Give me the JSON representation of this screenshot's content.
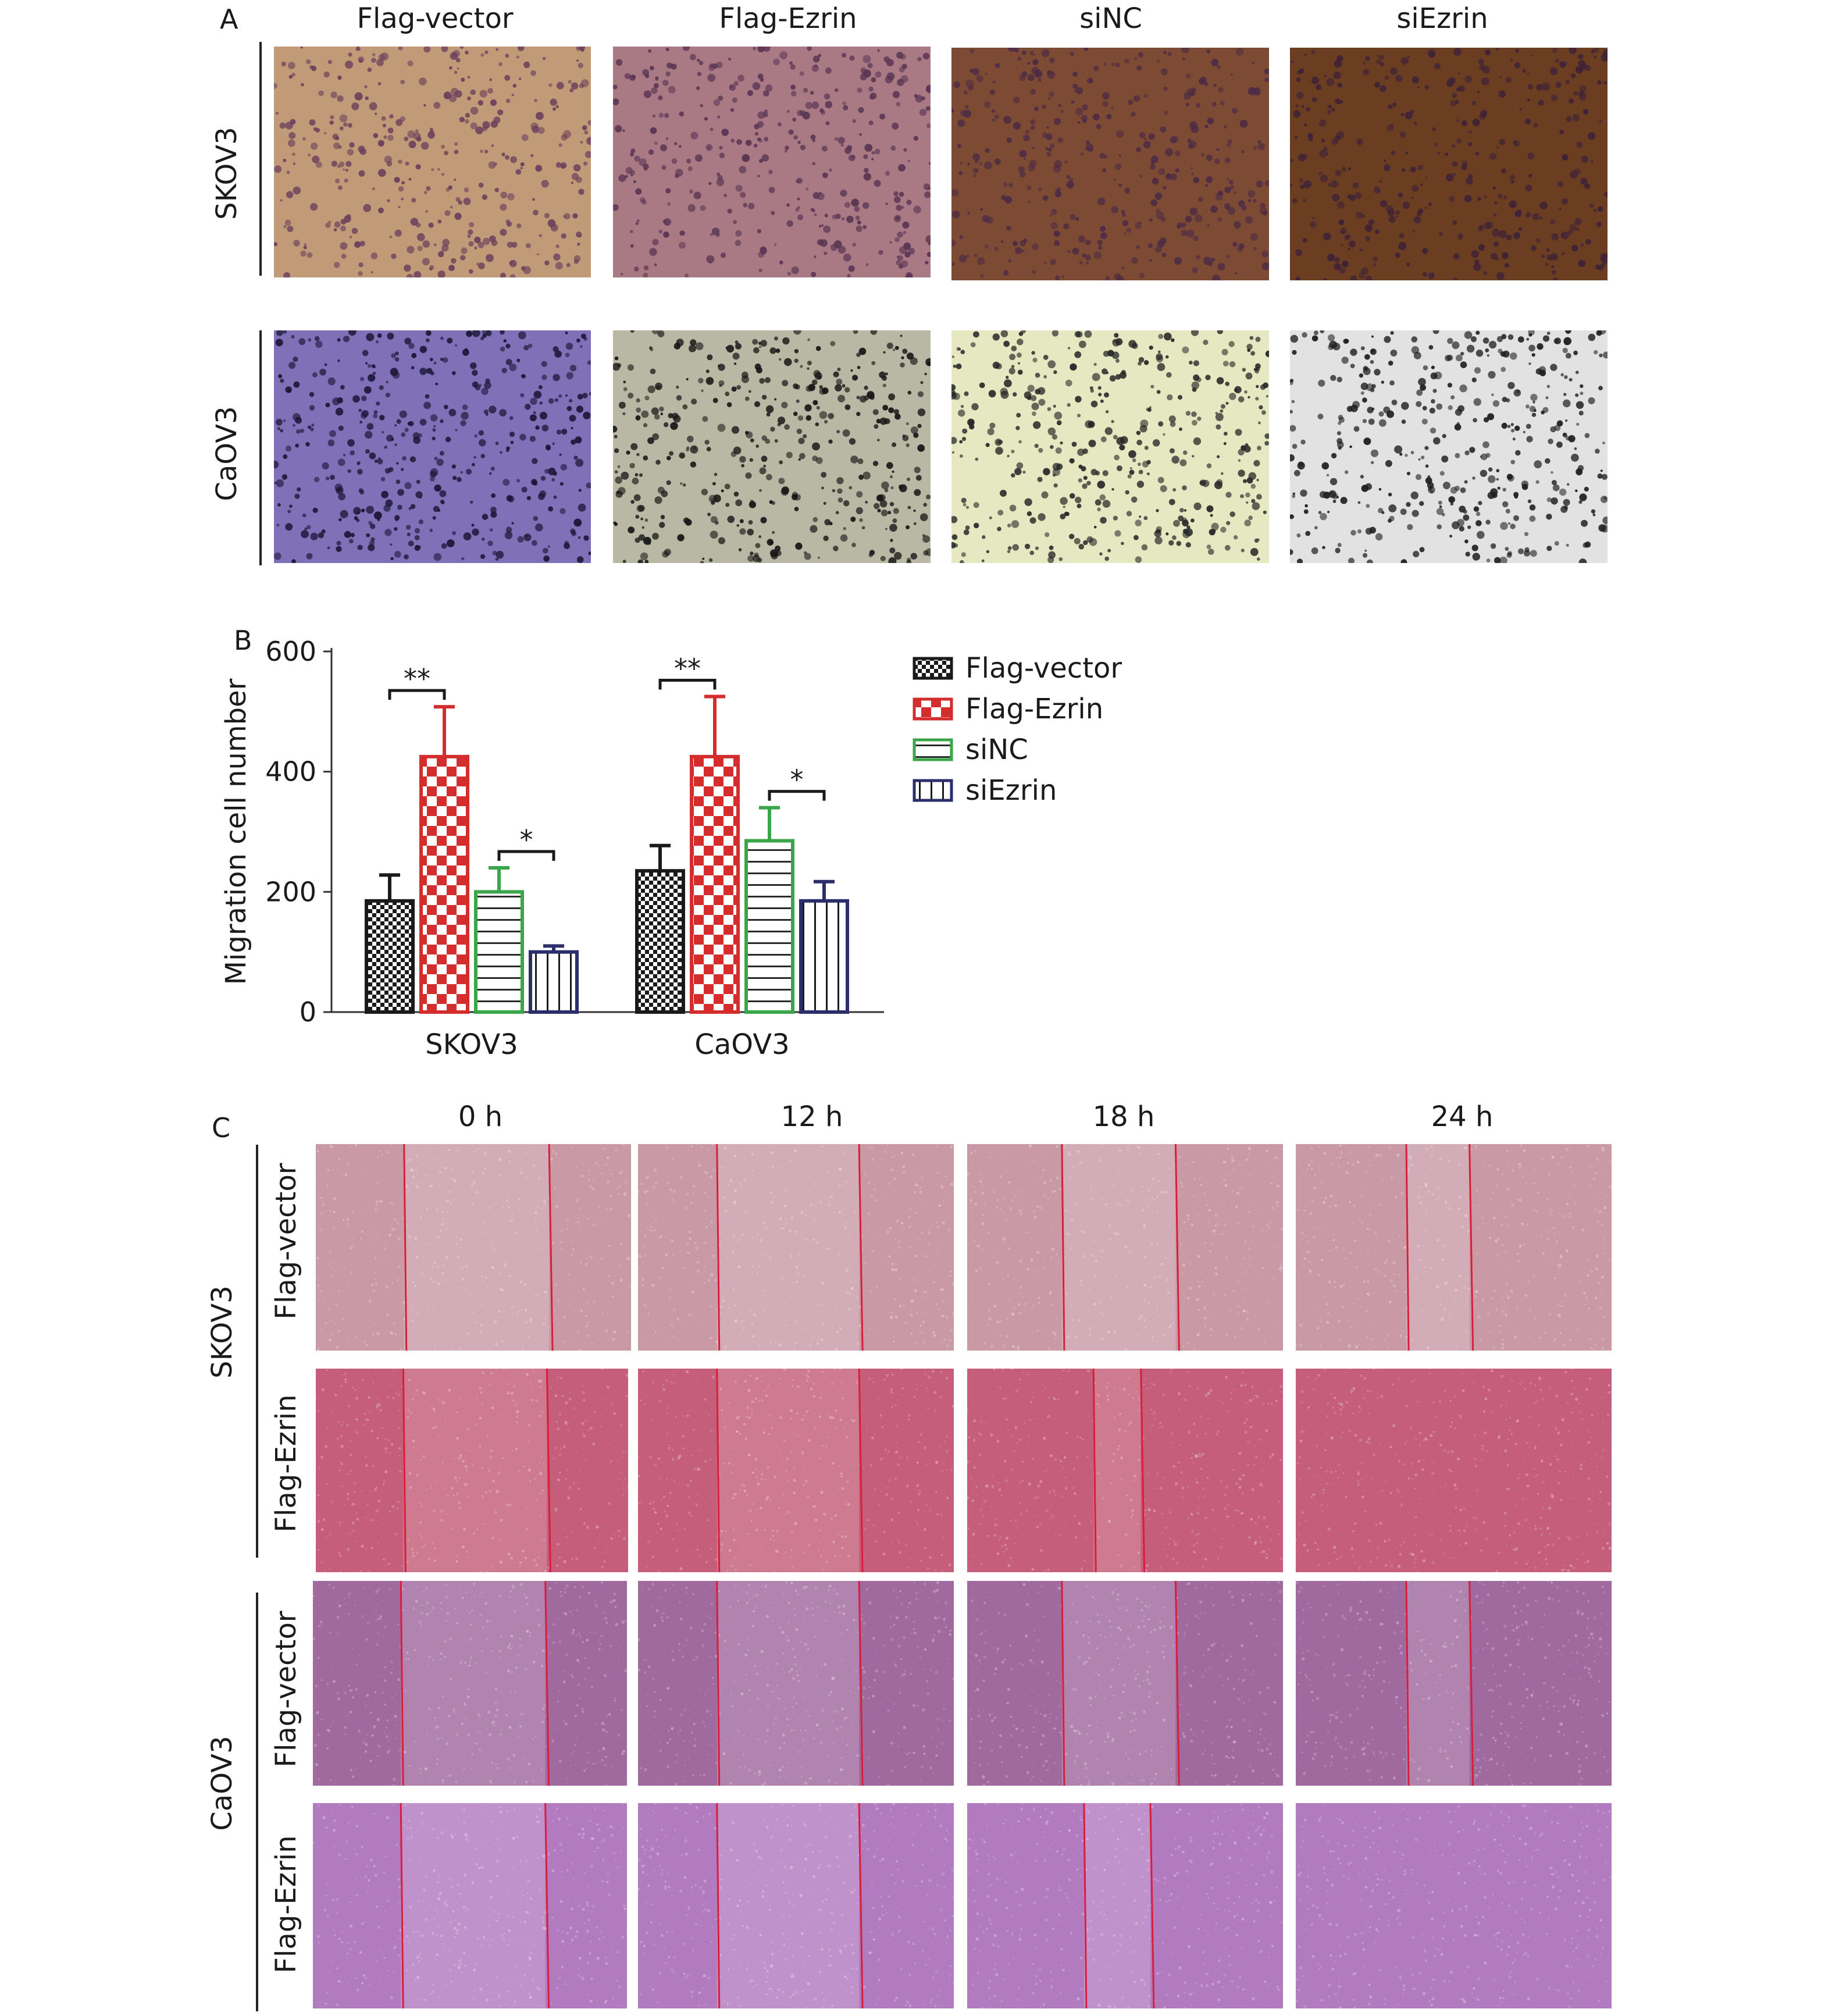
{
  "panel_labels": {
    "a": "A",
    "b": "B",
    "c": "C"
  },
  "panel_a": {
    "columns": [
      "Flag-vector",
      "Flag-Ezrin",
      "siNC",
      "siEzrin"
    ],
    "rows": [
      "SKOV3",
      "CaOV3"
    ],
    "colors": {
      "SKOV3": [
        [
          "#c19a78",
          "#6d3f5c"
        ],
        [
          "#a97a84",
          "#5a3654"
        ],
        [
          "#7d4a33",
          "#4e2c45"
        ],
        [
          "#6b3e22",
          "#3f2237"
        ]
      ],
      "CaOV3": [
        [
          "#7f70b8",
          "#1c1738"
        ],
        [
          "#b9b8a4",
          "#161616"
        ],
        [
          "#e5e8c0",
          "#262626"
        ],
        [
          "#e2e2e2",
          "#1e1e1e"
        ]
      ]
    }
  },
  "chart_data": {
    "type": "bar",
    "ylabel": "Migration cell number",
    "ylim": [
      0,
      600
    ],
    "yticks": [
      "0",
      "200",
      "400",
      "600"
    ],
    "categories": [
      "SKOV3",
      "CaOV3"
    ],
    "series": [
      {
        "name": "Flag-vector",
        "values": [
          185,
          235
        ],
        "errors": [
          43,
          42
        ],
        "color": "#1a1a1a",
        "pattern": "checker-small"
      },
      {
        "name": "Flag-Ezrin",
        "values": [
          425,
          425
        ],
        "errors": [
          83,
          100
        ],
        "color": "#d42d2d",
        "pattern": "checker-large"
      },
      {
        "name": "siNC",
        "values": [
          200,
          285
        ],
        "errors": [
          40,
          55
        ],
        "color": "#3aa64a",
        "pattern": "horizontal"
      },
      {
        "name": "siEzrin",
        "values": [
          100,
          185
        ],
        "errors": [
          10,
          32
        ],
        "color": "#2b2e6b",
        "pattern": "vertical"
      }
    ],
    "significance": [
      {
        "category": "SKOV3",
        "pair": [
          0,
          1
        ],
        "label": "**"
      },
      {
        "category": "SKOV3",
        "pair": [
          2,
          3
        ],
        "label": "*"
      },
      {
        "category": "CaOV3",
        "pair": [
          0,
          1
        ],
        "label": "**"
      },
      {
        "category": "CaOV3",
        "pair": [
          2,
          3
        ],
        "label": "*"
      }
    ],
    "legend_position": "right"
  },
  "panel_c": {
    "columns": [
      "0 h",
      "12 h",
      "18 h",
      "24 h"
    ],
    "groups": [
      "SKOV3",
      "CaOV3"
    ],
    "rows": [
      "Flag-vector",
      "Flag-Ezrin",
      "Flag-vector",
      "Flag-Ezrin"
    ],
    "colors": [
      "#c99aa6",
      "#c45e7a",
      "#a06a9e",
      "#b27bc0"
    ]
  }
}
